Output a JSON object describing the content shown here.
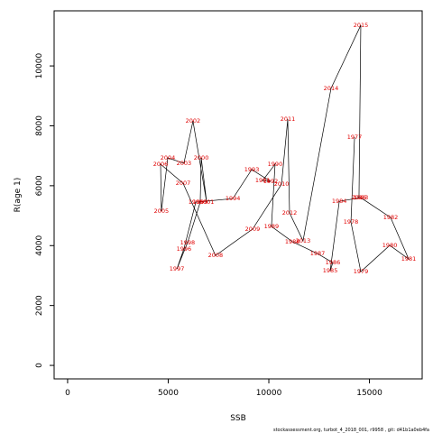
{
  "chart_data": {
    "type": "line",
    "x_label": "SSB",
    "y_label": "R(age 1)",
    "footer": "stockassessment.org, turbot_4_2018_001, r9958 , git: d41b1a0eb4fa",
    "categories": [
      "1977",
      "1978",
      "1979",
      "1980",
      "1981",
      "1982",
      "1983",
      "1984",
      "1985",
      "1986",
      "1987",
      "1988",
      "1989",
      "1990",
      "1991",
      "1992",
      "1993",
      "1994",
      "1995",
      "1996",
      "1997",
      "1998",
      "1999",
      "2000",
      "2001",
      "2002",
      "2003",
      "2004",
      "2005",
      "2006",
      "2007",
      "2008",
      "2009",
      "2010",
      "2011",
      "2012",
      "2013",
      "2014",
      "2015",
      "2016"
    ],
    "x": [
      14260,
      14080,
      14570,
      16010,
      16950,
      16050,
      14570,
      13500,
      13050,
      13180,
      12420,
      11170,
      10130,
      10310,
      9690,
      10090,
      9150,
      8210,
      6370,
      5780,
      5430,
      5960,
      6590,
      6640,
      6910,
      6230,
      5780,
      4980,
      4660,
      4620,
      5740,
      7350,
      9190,
      10630,
      10940,
      11030,
      11700,
      13090,
      14570,
      14480
    ],
    "values": [
      7620,
      4790,
      3130,
      4010,
      3550,
      4940,
      5600,
      5480,
      3160,
      3430,
      3730,
      4130,
      4640,
      6720,
      6170,
      6140,
      6540,
      5570,
      5450,
      3890,
      3220,
      4100,
      5450,
      6930,
      5450,
      8160,
      6750,
      6930,
      5150,
      6720,
      6080,
      3670,
      4550,
      6050,
      8220,
      5090,
      4160,
      9250,
      11360,
      5600
    ],
    "line_color": "#000000",
    "label_color": "#e00000",
    "xlim": [
      -670,
      17620
    ],
    "ylim": [
      -450,
      11840
    ],
    "xticks": [
      0,
      5000,
      10000,
      15000
    ],
    "yticks": [
      0,
      2000,
      4000,
      6000,
      8000,
      10000
    ]
  }
}
